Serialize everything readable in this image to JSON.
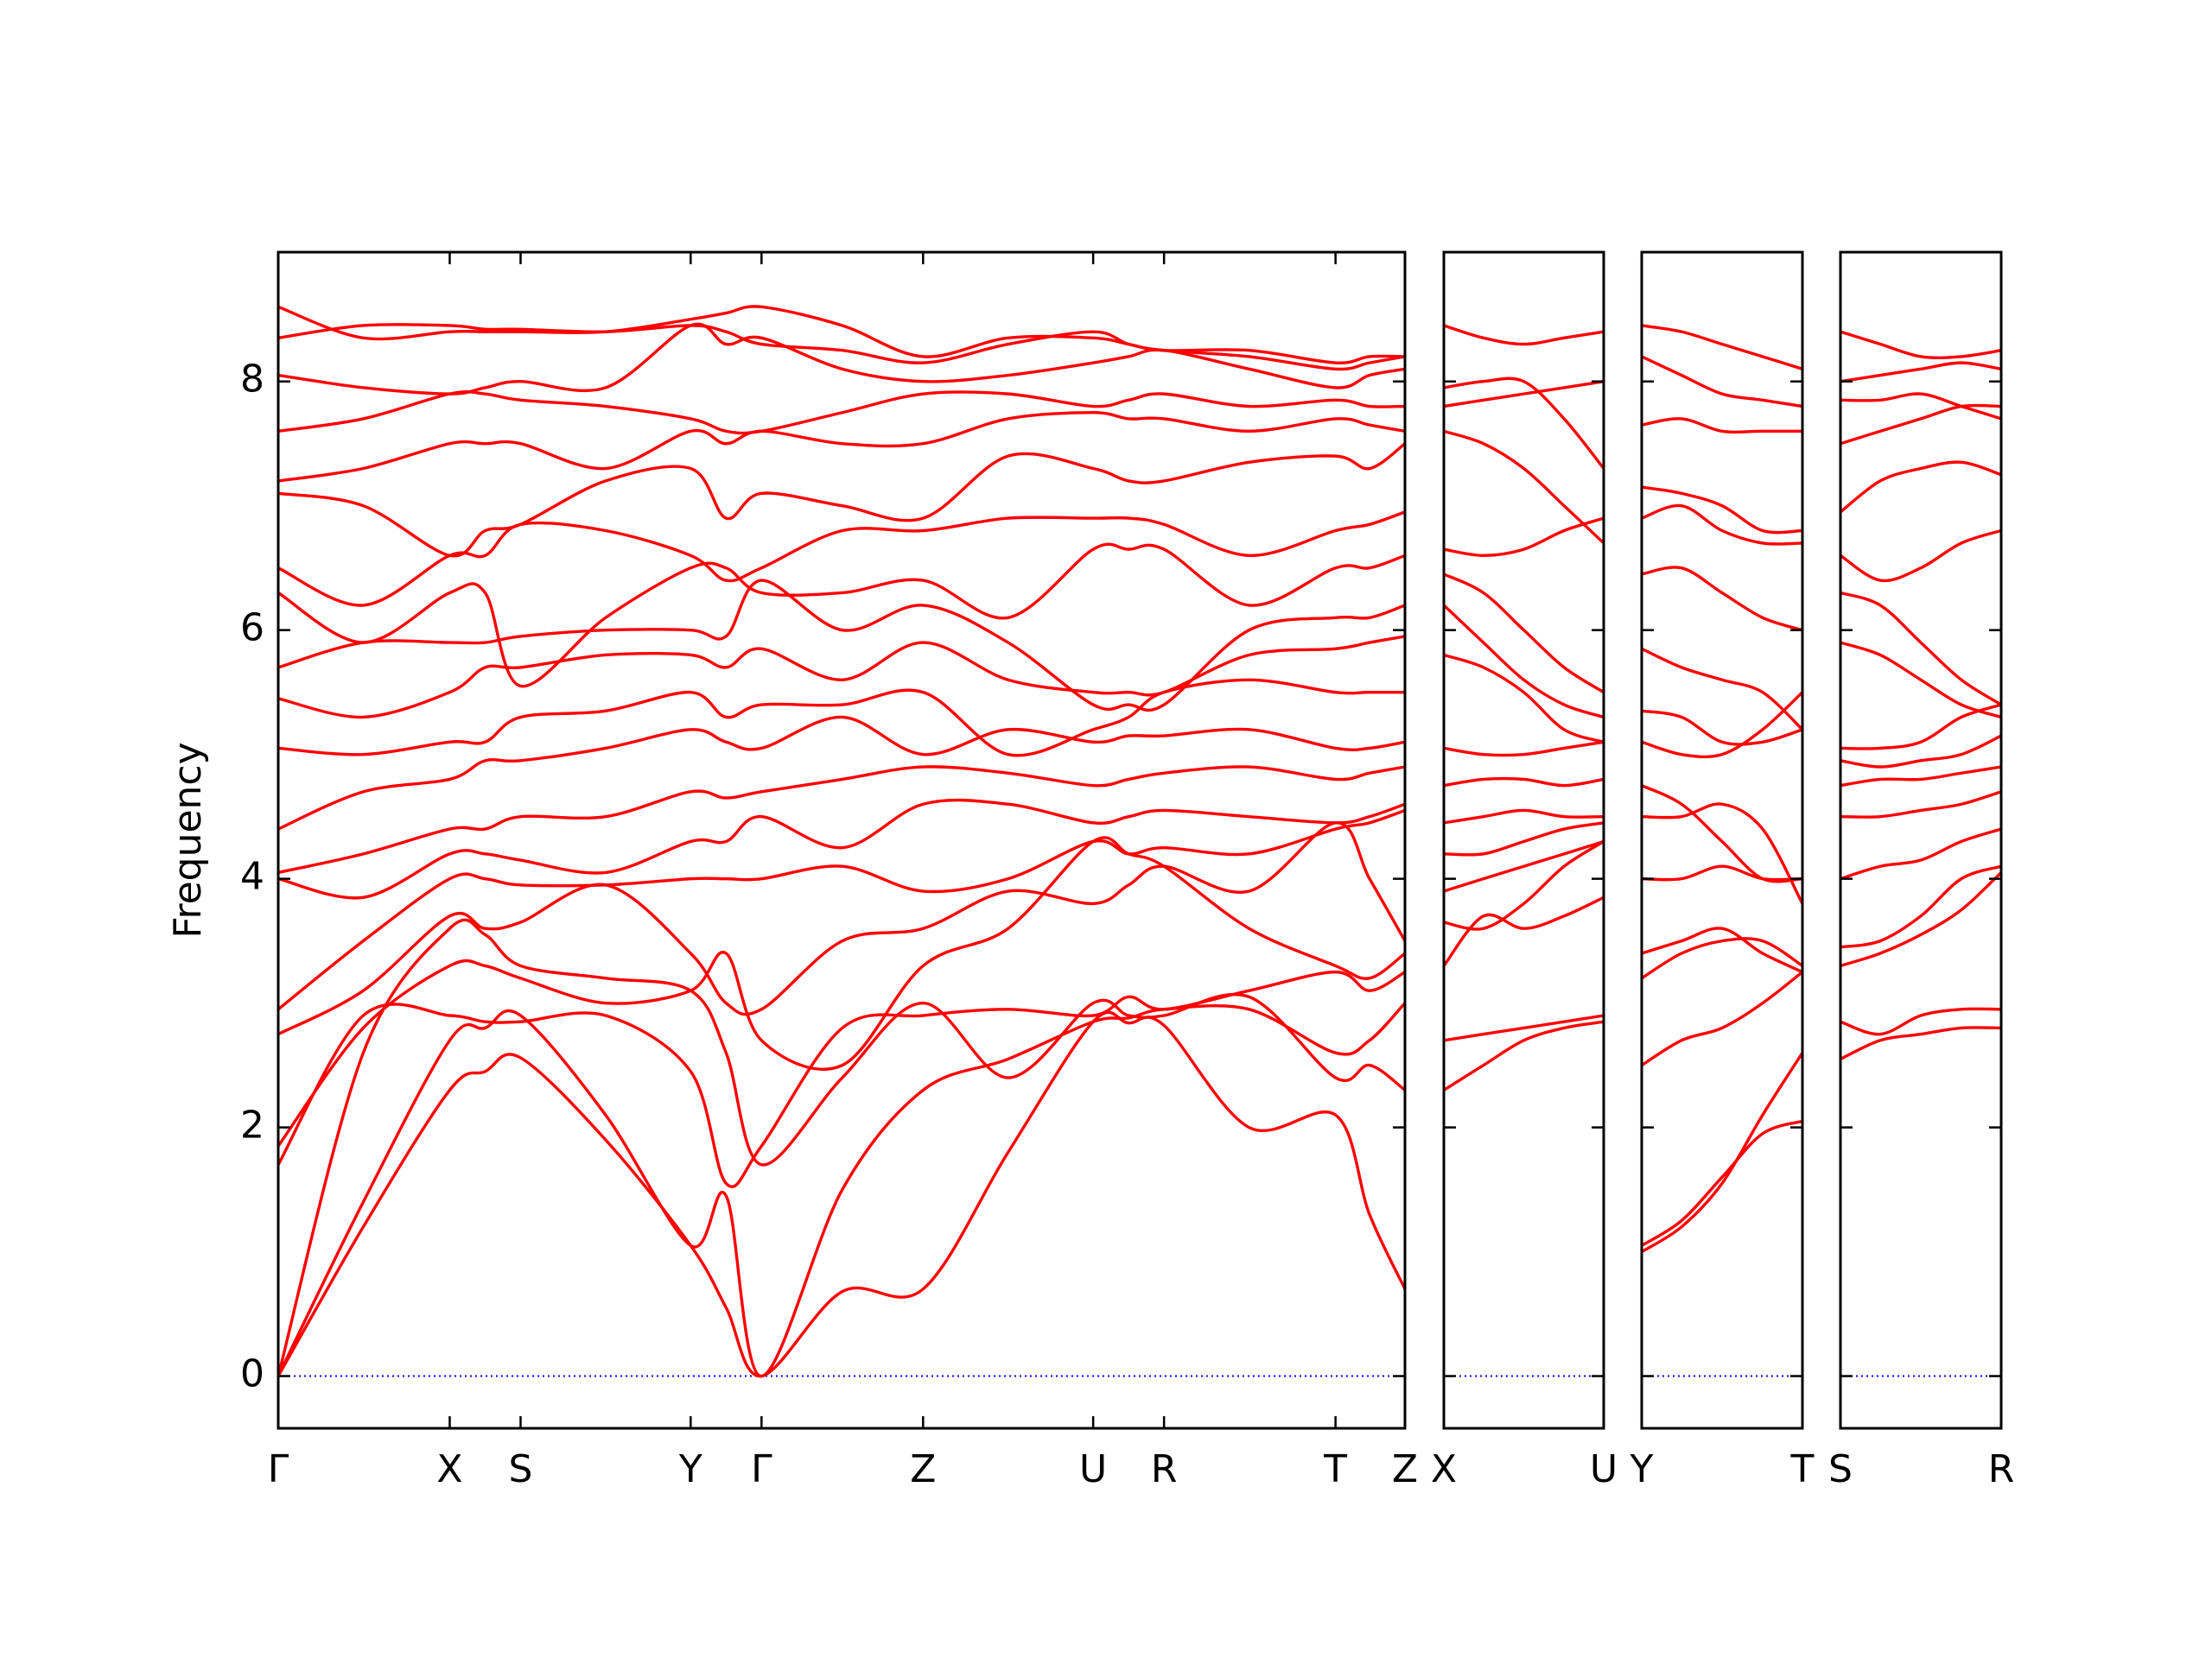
{
  "chart_data": [
    {
      "type": "line",
      "ylabel": "Frequency",
      "color": "#ff0000",
      "x": [
        0,
        0.6,
        1.21,
        1.46,
        1.71,
        2.31,
        2.91,
        3.16,
        3.41,
        3.98,
        4.55,
        5.15,
        5.75,
        6.0,
        6.25,
        6.85,
        7.46,
        7.7,
        7.95
      ],
      "xlim": [
        0,
        7.95
      ],
      "xticks": [
        {
          "value": 0,
          "label": "Γ"
        },
        {
          "value": 1.21,
          "label": "X"
        },
        {
          "value": 1.71,
          "label": "S"
        },
        {
          "value": 2.91,
          "label": "Y"
        },
        {
          "value": 3.41,
          "label": "Γ"
        },
        {
          "value": 4.55,
          "label": "Z"
        },
        {
          "value": 5.75,
          "label": "U"
        },
        {
          "value": 6.25,
          "label": "R"
        },
        {
          "value": 7.46,
          "label": "T"
        },
        {
          "value": 7.95,
          "label": "Z"
        }
      ],
      "ylim": [
        -0.42,
        9.04
      ],
      "yticks": [
        0,
        2,
        4,
        6,
        8
      ],
      "hlines": [
        {
          "y": 0,
          "color": "#0000ff"
        }
      ],
      "series": [
        {
          "values": [
            0,
            1.2,
            2.3,
            2.45,
            2.56,
            1.9,
            1.05,
            0.55,
            0,
            0.68,
            0.7,
            1.8,
            2.85,
            2.84,
            2.82,
            2.0,
            2.1,
            1.3,
            0.7
          ]
        },
        {
          "values": [
            0,
            1.4,
            2.7,
            2.8,
            2.9,
            2.1,
            1.05,
            1.45,
            0,
            1.5,
            2.3,
            2.55,
            2.85,
            2.88,
            2.95,
            2.95,
            2.6,
            2.7,
            3.0
          ]
        },
        {
          "values": [
            0,
            2.6,
            3.6,
            3.55,
            3.3,
            3.2,
            3.1,
            2.6,
            1.7,
            2.4,
            3.0,
            2.4,
            3.0,
            2.9,
            2.9,
            3.05,
            2.4,
            2.5,
            2.3
          ]
        },
        {
          "values": [
            1.7,
            2.9,
            2.9,
            2.85,
            2.85,
            2.9,
            2.45,
            1.55,
            1.85,
            2.8,
            2.9,
            2.95,
            2.9,
            3.05,
            2.95,
            3.1,
            3.25,
            3.1,
            3.25
          ]
        },
        {
          "values": [
            1.85,
            2.8,
            3.3,
            3.3,
            3.2,
            3.0,
            3.1,
            3.4,
            2.7,
            2.5,
            3.3,
            3.6,
            4.3,
            4.2,
            4.1,
            3.6,
            3.3,
            3.2,
            3.4
          ]
        },
        {
          "values": [
            2.75,
            3.1,
            3.7,
            3.6,
            3.65,
            3.95,
            3.4,
            3.0,
            2.95,
            3.5,
            3.6,
            3.9,
            3.8,
            3.95,
            4.1,
            3.9,
            4.45,
            4.0,
            3.5
          ]
        },
        {
          "values": [
            2.95,
            3.5,
            4.0,
            4.0,
            3.95,
            3.95,
            4.0,
            4.0,
            4.0,
            4.1,
            3.9,
            4.0,
            4.3,
            4.2,
            4.25,
            4.2,
            4.4,
            4.45,
            4.55
          ]
        },
        {
          "values": [
            4.0,
            3.85,
            4.2,
            4.2,
            4.15,
            4.05,
            4.3,
            4.3,
            4.5,
            4.25,
            4.6,
            4.6,
            4.45,
            4.5,
            4.55,
            4.5,
            4.45,
            4.5,
            4.6
          ]
        },
        {
          "values": [
            4.05,
            4.2,
            4.4,
            4.4,
            4.5,
            4.5,
            4.7,
            4.65,
            4.7,
            4.8,
            4.9,
            4.85,
            4.75,
            4.8,
            4.85,
            4.9,
            4.8,
            4.85,
            4.9
          ]
        },
        {
          "values": [
            4.4,
            4.7,
            4.8,
            4.95,
            4.95,
            5.05,
            5.2,
            5.1,
            5.05,
            5.3,
            5.0,
            5.2,
            5.1,
            5.15,
            5.15,
            5.2,
            5.05,
            5.05,
            5.1
          ]
        },
        {
          "values": [
            5.05,
            5.0,
            5.1,
            5.1,
            5.3,
            5.35,
            5.5,
            5.3,
            5.4,
            5.4,
            5.5,
            5.0,
            5.2,
            5.3,
            5.5,
            5.6,
            5.5,
            5.5,
            5.5
          ]
        },
        {
          "values": [
            5.45,
            5.3,
            5.5,
            5.7,
            5.7,
            5.8,
            5.8,
            5.7,
            5.85,
            5.6,
            5.9,
            5.6,
            5.5,
            5.5,
            5.5,
            5.8,
            5.85,
            5.9,
            5.95
          ]
        },
        {
          "values": [
            5.7,
            5.9,
            5.9,
            5.9,
            5.95,
            6.0,
            6.0,
            5.95,
            6.4,
            6.0,
            6.2,
            5.9,
            5.4,
            5.4,
            5.4,
            6.0,
            6.1,
            6.1,
            6.2
          ]
        },
        {
          "values": [
            6.3,
            5.9,
            6.3,
            6.3,
            5.55,
            6.1,
            6.5,
            6.5,
            6.3,
            6.3,
            6.4,
            6.1,
            6.65,
            6.65,
            6.65,
            6.2,
            6.5,
            6.5,
            6.6
          ]
        },
        {
          "values": [
            6.5,
            6.2,
            6.6,
            6.6,
            6.85,
            6.8,
            6.6,
            6.4,
            6.5,
            6.8,
            6.8,
            6.9,
            6.9,
            6.9,
            6.85,
            6.6,
            6.8,
            6.85,
            6.95
          ]
        },
        {
          "values": [
            7.1,
            7.0,
            6.6,
            6.8,
            6.85,
            7.2,
            7.3,
            6.9,
            7.1,
            7.0,
            6.9,
            7.4,
            7.3,
            7.2,
            7.2,
            7.35,
            7.4,
            7.3,
            7.5
          ]
        },
        {
          "values": [
            7.2,
            7.3,
            7.5,
            7.5,
            7.5,
            7.3,
            7.6,
            7.5,
            7.6,
            7.5,
            7.5,
            7.7,
            7.75,
            7.7,
            7.7,
            7.6,
            7.7,
            7.65,
            7.6
          ]
        },
        {
          "values": [
            7.6,
            7.7,
            7.9,
            7.9,
            7.85,
            7.8,
            7.7,
            7.6,
            7.6,
            7.75,
            7.9,
            7.9,
            7.8,
            7.85,
            7.9,
            7.8,
            7.85,
            7.8,
            7.8
          ]
        },
        {
          "values": [
            8.05,
            7.95,
            7.9,
            7.95,
            8.0,
            7.95,
            8.45,
            8.3,
            8.35,
            8.1,
            8.0,
            8.05,
            8.15,
            8.2,
            8.25,
            8.1,
            7.95,
            8.05,
            8.1
          ]
        },
        {
          "values": [
            8.35,
            8.45,
            8.45,
            8.42,
            8.42,
            8.4,
            8.45,
            8.4,
            8.3,
            8.25,
            8.15,
            8.3,
            8.4,
            8.3,
            8.25,
            8.2,
            8.1,
            8.15,
            8.2
          ]
        },
        {
          "values": [
            8.6,
            8.35,
            8.4,
            8.4,
            8.4,
            8.4,
            8.5,
            8.55,
            8.6,
            8.45,
            8.2,
            8.35,
            8.35,
            8.3,
            8.25,
            8.25,
            8.15,
            8.2,
            8.2
          ]
        }
      ]
    },
    {
      "type": "line",
      "color": "#ff0000",
      "x": [
        0,
        0.28,
        0.565,
        0.85,
        1.13
      ],
      "xlim": [
        0,
        1.13
      ],
      "xticks": [
        {
          "value": 0,
          "label": "X"
        },
        {
          "value": 1.13,
          "label": "U"
        }
      ],
      "ylim": [
        -0.42,
        9.04
      ],
      "yticks": [
        0,
        2,
        4,
        6,
        8
      ],
      "hlines": [
        {
          "y": 0,
          "color": "#0000ff"
        }
      ],
      "series": [
        {
          "values": [
            2.3,
            2.5,
            2.7,
            2.8,
            2.85
          ]
        },
        {
          "values": [
            2.7,
            2.75,
            2.8,
            2.85,
            2.9
          ]
        },
        {
          "values": [
            3.3,
            3.7,
            3.6,
            3.7,
            3.85
          ]
        },
        {
          "values": [
            3.65,
            3.6,
            3.8,
            4.1,
            4.3
          ]
        },
        {
          "values": [
            3.9,
            4.0,
            4.1,
            4.2,
            4.3
          ]
        },
        {
          "values": [
            4.2,
            4.2,
            4.3,
            4.4,
            4.45
          ]
        },
        {
          "values": [
            4.45,
            4.5,
            4.55,
            4.5,
            4.5
          ]
        },
        {
          "values": [
            4.75,
            4.8,
            4.8,
            4.75,
            4.8
          ]
        },
        {
          "values": [
            5.05,
            5.0,
            5.0,
            5.05,
            5.1
          ]
        },
        {
          "values": [
            5.8,
            5.7,
            5.5,
            5.2,
            5.1
          ]
        },
        {
          "values": [
            6.2,
            5.9,
            5.6,
            5.4,
            5.3
          ]
        },
        {
          "values": [
            6.45,
            6.3,
            6.0,
            5.7,
            5.5
          ]
        },
        {
          "values": [
            6.65,
            6.6,
            6.65,
            6.8,
            6.9
          ]
        },
        {
          "values": [
            7.6,
            7.5,
            7.3,
            7.0,
            6.7
          ]
        },
        {
          "values": [
            7.8,
            7.85,
            7.9,
            7.95,
            8.0
          ]
        },
        {
          "values": [
            7.95,
            8.0,
            8.0,
            7.7,
            7.3
          ]
        },
        {
          "values": [
            8.45,
            8.35,
            8.3,
            8.35,
            8.4
          ]
        }
      ]
    },
    {
      "type": "line",
      "color": "#ff0000",
      "x": [
        0,
        0.28,
        0.565,
        0.85,
        1.13
      ],
      "xlim": [
        0,
        1.13
      ],
      "xticks": [
        {
          "value": 0,
          "label": "Y"
        },
        {
          "value": 1.13,
          "label": "T"
        }
      ],
      "ylim": [
        -0.42,
        9.04
      ],
      "yticks": [
        0,
        2,
        4,
        6,
        8
      ],
      "hlines": [
        {
          "y": 0,
          "color": "#0000ff"
        }
      ],
      "series": [
        {
          "values": [
            1.05,
            1.25,
            1.6,
            1.95,
            2.05
          ]
        },
        {
          "values": [
            1.0,
            1.2,
            1.55,
            2.1,
            2.6
          ]
        },
        {
          "values": [
            2.5,
            2.7,
            2.8,
            3.0,
            3.25
          ]
        },
        {
          "values": [
            3.2,
            3.4,
            3.5,
            3.5,
            3.3
          ]
        },
        {
          "values": [
            3.4,
            3.5,
            3.6,
            3.4,
            3.25
          ]
        },
        {
          "values": [
            4.0,
            4.0,
            4.1,
            4.0,
            4.0
          ]
        },
        {
          "values": [
            4.5,
            4.5,
            4.6,
            4.4,
            3.8
          ]
        },
        {
          "values": [
            4.75,
            4.6,
            4.3,
            4.0,
            4.0
          ]
        },
        {
          "values": [
            5.1,
            5.0,
            5.0,
            5.2,
            5.5
          ]
        },
        {
          "values": [
            5.35,
            5.3,
            5.1,
            5.1,
            5.2
          ]
        },
        {
          "values": [
            5.85,
            5.7,
            5.6,
            5.5,
            5.2
          ]
        },
        {
          "values": [
            6.45,
            6.5,
            6.3,
            6.1,
            6.0
          ]
        },
        {
          "values": [
            6.9,
            7.0,
            6.8,
            6.7,
            6.7
          ]
        },
        {
          "values": [
            7.15,
            7.1,
            7.0,
            6.8,
            6.8
          ]
        },
        {
          "values": [
            7.65,
            7.7,
            7.6,
            7.6,
            7.6
          ]
        },
        {
          "values": [
            8.2,
            8.05,
            7.9,
            7.85,
            7.8
          ]
        },
        {
          "values": [
            8.45,
            8.4,
            8.3,
            8.2,
            8.1
          ]
        }
      ]
    },
    {
      "type": "line",
      "color": "#ff0000",
      "x": [
        0,
        0.28,
        0.565,
        0.85,
        1.13
      ],
      "xlim": [
        0,
        1.13
      ],
      "xticks": [
        {
          "value": 0,
          "label": "S"
        },
        {
          "value": 1.13,
          "label": "R"
        }
      ],
      "ylim": [
        -0.42,
        9.04
      ],
      "yticks": [
        0,
        2,
        4,
        6,
        8
      ],
      "hlines": [
        {
          "y": 0,
          "color": "#0000ff"
        }
      ],
      "series": [
        {
          "values": [
            2.55,
            2.7,
            2.75,
            2.8,
            2.8
          ]
        },
        {
          "values": [
            2.85,
            2.75,
            2.9,
            2.95,
            2.95
          ]
        },
        {
          "values": [
            3.3,
            3.4,
            3.55,
            3.75,
            4.05
          ]
        },
        {
          "values": [
            3.45,
            3.5,
            3.7,
            4.0,
            4.1
          ]
        },
        {
          "values": [
            4.0,
            4.1,
            4.15,
            4.3,
            4.4
          ]
        },
        {
          "values": [
            4.5,
            4.5,
            4.55,
            4.6,
            4.7
          ]
        },
        {
          "values": [
            4.75,
            4.8,
            4.8,
            4.85,
            4.9
          ]
        },
        {
          "values": [
            4.95,
            4.9,
            4.95,
            5.0,
            5.15
          ]
        },
        {
          "values": [
            5.05,
            5.05,
            5.1,
            5.3,
            5.4
          ]
        },
        {
          "values": [
            5.9,
            5.8,
            5.6,
            5.4,
            5.3
          ]
        },
        {
          "values": [
            6.3,
            6.2,
            5.9,
            5.6,
            5.4
          ]
        },
        {
          "values": [
            6.6,
            6.4,
            6.5,
            6.7,
            6.8
          ]
        },
        {
          "values": [
            6.95,
            7.2,
            7.3,
            7.35,
            7.25
          ]
        },
        {
          "values": [
            7.5,
            7.6,
            7.7,
            7.8,
            7.8
          ]
        },
        {
          "values": [
            7.85,
            7.85,
            7.9,
            7.8,
            7.7
          ]
        },
        {
          "values": [
            8.0,
            8.05,
            8.1,
            8.15,
            8.1
          ]
        },
        {
          "values": [
            8.4,
            8.3,
            8.2,
            8.2,
            8.25
          ]
        }
      ]
    }
  ]
}
